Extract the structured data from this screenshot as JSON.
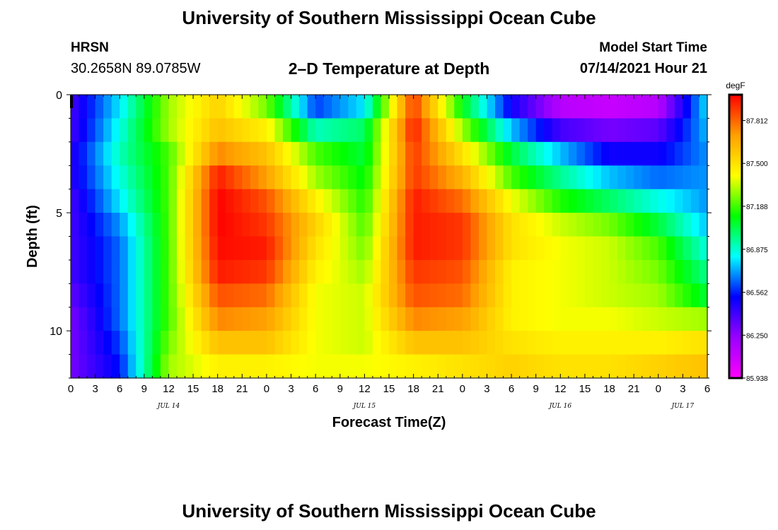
{
  "page": {
    "title": "University of Southern Mississippi Ocean Cube",
    "footer_title": "University of Southern Mississippi Ocean Cube",
    "station": "HRSN",
    "coords": "30.2658N  89.0785W",
    "model_start_label": "Model Start Time",
    "model_start_time": "07/14/2021 Hour 21"
  },
  "chart_data": {
    "type": "heatmap",
    "title": "2–D Temperature at Depth",
    "xlabel": "Forecast Time(Z)",
    "ylabel": "Depth (ft)",
    "x_unit": "hours since 07/14/2021 00Z",
    "xlim": [
      0,
      78
    ],
    "ylim": [
      0,
      12
    ],
    "y_inverted": true,
    "x_tick_labels": [
      "0",
      "3",
      "6",
      "9",
      "12",
      "15",
      "18",
      "21",
      "0",
      "3",
      "6",
      "9",
      "12",
      "15",
      "18",
      "21",
      "0",
      "3",
      "6",
      "9",
      "12",
      "15",
      "18",
      "21",
      "0",
      "3",
      "6"
    ],
    "date_labels": [
      {
        "x": 12,
        "label": "JUL 14"
      },
      {
        "x": 36,
        "label": "JUL 15"
      },
      {
        "x": 60,
        "label": "JUL 16"
      },
      {
        "x": 75,
        "label": "JUL 17"
      }
    ],
    "y_ticks": [
      {
        "value": 0,
        "label": "0"
      },
      {
        "value": 5,
        "label": "5"
      },
      {
        "value": 10,
        "label": "10"
      }
    ],
    "colorbar": {
      "unit": "degF",
      "min": 85.938,
      "max": 88.0,
      "tick_values": [
        87.812,
        87.5,
        87.188,
        86.875,
        86.562,
        86.25,
        85.938
      ],
      "tick_labels": [
        "87.812",
        "87.500",
        "87.188",
        "86.875",
        "86.562",
        "86.250",
        "85.938"
      ],
      "colors": [
        "#ff00ff",
        "#9a00ff",
        "#0000ff",
        "#00ffff",
        "#00ff00",
        "#ffff00",
        "#ffa000",
        "#ff0000"
      ]
    },
    "depth_levels": [
      0.5,
      1.5,
      2.5,
      3.5,
      4.5,
      5.5,
      6.5,
      7.5,
      8.5,
      9.5,
      10.5,
      11.5
    ],
    "time_hours": [
      0,
      6,
      12,
      18,
      24,
      30,
      36,
      42,
      48,
      54,
      60,
      66,
      72,
      78
    ],
    "values_degF": [
      [
        86.4,
        86.8,
        87.3,
        87.55,
        87.25,
        86.6,
        86.8,
        87.9,
        87.1,
        86.5,
        86.15,
        86.1,
        86.15,
        86.8
      ],
      [
        86.4,
        86.85,
        87.3,
        87.6,
        87.45,
        86.9,
        87.0,
        87.95,
        87.3,
        86.75,
        86.4,
        86.3,
        86.35,
        86.75
      ],
      [
        86.45,
        86.9,
        87.2,
        87.75,
        87.6,
        87.2,
        87.05,
        87.9,
        87.5,
        87.05,
        86.75,
        86.5,
        86.5,
        86.7
      ],
      [
        86.45,
        86.85,
        87.2,
        87.95,
        87.7,
        87.3,
        87.1,
        87.9,
        87.65,
        87.2,
        86.95,
        86.75,
        86.65,
        86.7
      ],
      [
        86.4,
        86.8,
        87.2,
        88.0,
        87.85,
        87.45,
        87.15,
        87.95,
        87.8,
        87.4,
        87.15,
        87.0,
        86.85,
        86.7
      ],
      [
        86.4,
        86.7,
        87.2,
        88.0,
        87.9,
        87.55,
        87.2,
        87.95,
        87.9,
        87.5,
        87.35,
        87.25,
        87.05,
        86.75
      ],
      [
        86.4,
        86.65,
        87.2,
        87.98,
        87.95,
        87.5,
        87.25,
        87.95,
        87.9,
        87.5,
        87.4,
        87.35,
        87.2,
        86.85
      ],
      [
        86.4,
        86.65,
        87.2,
        87.95,
        87.9,
        87.45,
        87.3,
        87.9,
        87.85,
        87.45,
        87.4,
        87.35,
        87.25,
        86.95
      ],
      [
        86.35,
        86.65,
        87.2,
        87.85,
        87.8,
        87.4,
        87.35,
        87.85,
        87.8,
        87.45,
        87.4,
        87.35,
        87.3,
        87.05
      ],
      [
        86.3,
        86.65,
        87.2,
        87.75,
        87.7,
        87.4,
        87.35,
        87.75,
        87.7,
        87.45,
        87.4,
        87.4,
        87.35,
        87.3
      ],
      [
        86.3,
        86.6,
        87.25,
        87.6,
        87.6,
        87.4,
        87.35,
        87.6,
        87.6,
        87.5,
        87.45,
        87.45,
        87.45,
        87.5
      ],
      [
        86.3,
        86.55,
        87.3,
        87.45,
        87.45,
        87.4,
        87.4,
        87.45,
        87.5,
        87.55,
        87.5,
        87.5,
        87.55,
        87.6
      ]
    ]
  }
}
